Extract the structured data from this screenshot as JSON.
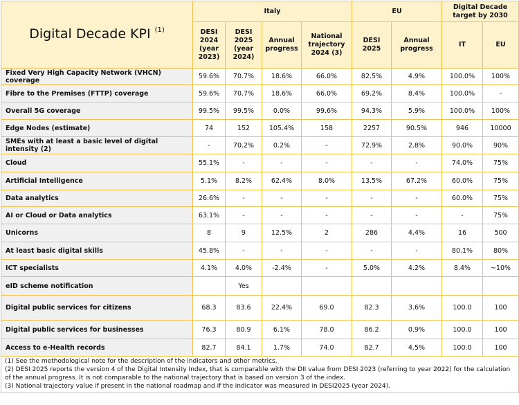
{
  "header": {
    "title": "Digital Decade KPI",
    "title_note": "(1)",
    "groups": [
      "Italy",
      "EU",
      "Digital Decade target by 2030"
    ],
    "columns": [
      "DESI 2024 (year 2023)",
      "DESI 2025 (year 2024)",
      "Annual progress",
      "National trajectory 2024 (3)",
      "DESI 2025",
      "Annual progress",
      "IT",
      "EU"
    ]
  },
  "table": {
    "rows": [
      {
        "label": "Fixed Very High Capacity Network (VHCN) coverage",
        "cells": [
          "59.6%",
          "70.7%",
          "18.6%",
          "66.0%",
          "82.5%",
          "4.9%",
          "100.0%",
          "100%"
        ]
      },
      {
        "label": "Fibre to the Premises (FTTP) coverage",
        "cells": [
          "59.6%",
          "70.7%",
          "18.6%",
          "66.0%",
          "69.2%",
          "8.4%",
          "100.0%",
          "-"
        ]
      },
      {
        "label": "Overall 5G coverage",
        "cells": [
          "99.5%",
          "99.5%",
          "0.0%",
          "99.6%",
          "94.3%",
          "5.9%",
          "100.0%",
          "100%"
        ]
      },
      {
        "label": "Edge Nodes (estimate)",
        "cells": [
          "74",
          "152",
          "105.4%",
          "158",
          "2257",
          "90.5%",
          "946",
          "10000"
        ]
      },
      {
        "label": "SMEs with at least a basic level of digital intensity (2)",
        "cells": [
          "-",
          "70.2%",
          "0.2%",
          "-",
          "72.9%",
          "2.8%",
          "90.0%",
          "90%"
        ]
      },
      {
        "label": "Cloud",
        "cells": [
          "55.1%",
          "-",
          "-",
          "-",
          "-",
          "-",
          "74.0%",
          "75%"
        ]
      },
      {
        "label": "Artificial Intelligence",
        "cells": [
          "5.1%",
          "8.2%",
          "62.4%",
          "8.0%",
          "13.5%",
          "67.2%",
          "60.0%",
          "75%"
        ]
      },
      {
        "label": "Data analytics",
        "cells": [
          "26.6%",
          "-",
          "-",
          "-",
          "-",
          "-",
          "60.0%",
          "75%"
        ]
      },
      {
        "label": "AI or Cloud or Data analytics",
        "cells": [
          "63.1%",
          "-",
          "-",
          "-",
          "-",
          "-",
          "-",
          "75%"
        ]
      },
      {
        "label": "Unicorns",
        "cells": [
          "8",
          "9",
          "12.5%",
          "2",
          "286",
          "4.4%",
          "16",
          "500"
        ]
      },
      {
        "label": "At least basic digital skills",
        "cells": [
          "45.8%",
          "-",
          "-",
          "-",
          "-",
          "-",
          "80.1%",
          "80%"
        ]
      },
      {
        "label": "ICT specialists",
        "cells": [
          "4.1%",
          "4.0%",
          "-2.4%",
          "-",
          "5.0%",
          "4.2%",
          "8.4%",
          "~10%"
        ]
      },
      {
        "label": "eID scheme notification",
        "cells": [
          null,
          "Yes",
          null,
          null,
          null,
          null,
          null,
          null
        ]
      },
      {
        "label": "Digital public services for citizens",
        "cells": [
          "68.3",
          "83.6",
          "22.4%",
          "69.0",
          "82.3",
          "3.6%",
          "100.0",
          "100"
        ]
      },
      {
        "label": "Digital public services for businesses",
        "cells": [
          "76.3",
          "80.9",
          "6.1%",
          "78.0",
          "86.2",
          "0.9%",
          "100.0",
          "100"
        ]
      },
      {
        "label": "Access to e-Health records",
        "cells": [
          "82.7",
          "84.1",
          "1.7%",
          "74.0",
          "82.7",
          "4.5%",
          "100.0",
          "100"
        ]
      }
    ]
  },
  "notes": [
    "(1) See the methodological note for the description of the indicators and other metrics.",
    "(2) DESI 2025 reports the version 4 of the Digital Intensity Index, that is comparable with the DII value from DESI 2023 (referring to year 2022) for the calculation of the annual progress. It is not comparable to the national trajectory that is based on version 3 of the index.",
    "(3) National trajectory value if present in the national roadmap and if the indicator was measured in DESI2025 (year 2024)."
  ]
}
